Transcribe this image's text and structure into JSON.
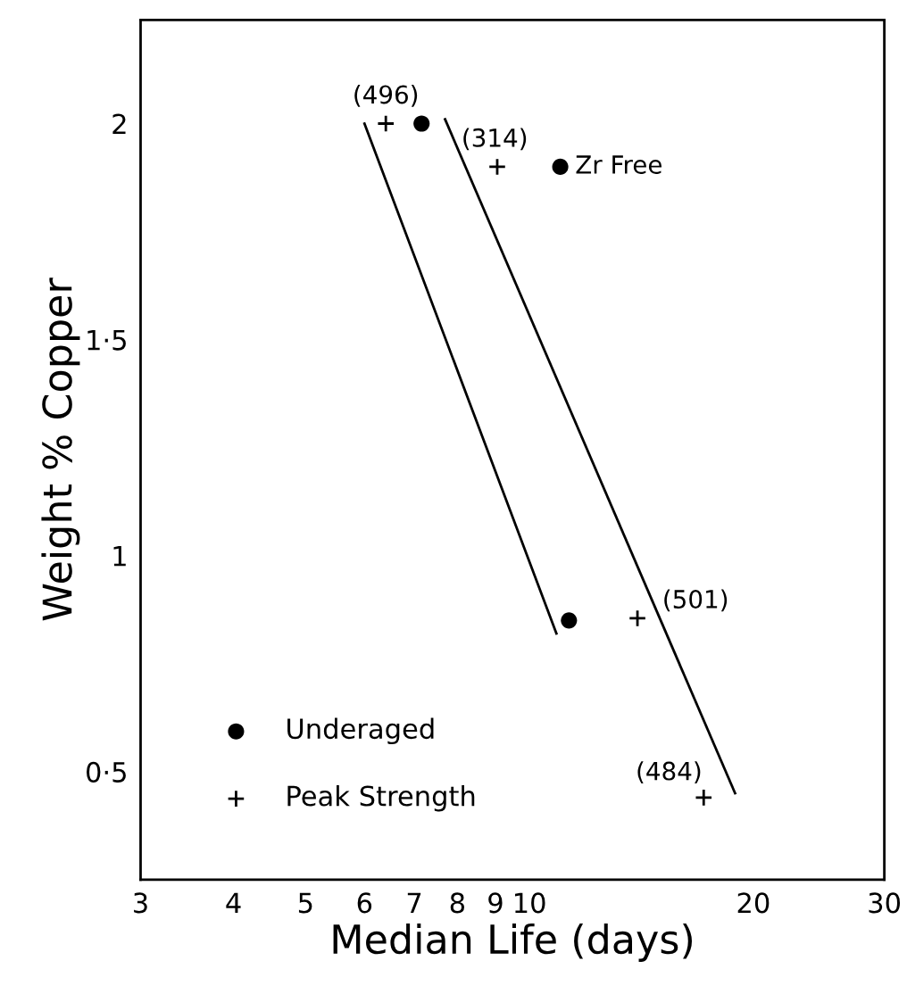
{
  "chart_data": {
    "type": "scatter",
    "xlabel": "Median Life (days)",
    "ylabel": "Weight % Copper",
    "log": "x",
    "xlim": [
      3,
      30
    ],
    "xticks": [
      3,
      4,
      5,
      6,
      7,
      8,
      9,
      10,
      20,
      30
    ],
    "ylim": [
      0.25,
      2.24
    ],
    "yticks": [
      {
        "value": 0.5,
        "label": "0·5"
      },
      {
        "value": 1,
        "label": "1"
      },
      {
        "value": 1.5,
        "label": "1·5"
      },
      {
        "value": 2,
        "label": "2"
      }
    ],
    "grid": false,
    "legend": "bottom left",
    "series": [
      {
        "name": "Underaged",
        "color": "#000000",
        "marker": "circle",
        "x": [
          7.16,
          11.0,
          11.3
        ],
        "values": [
          2.0,
          1.9,
          0.85
        ]
      },
      {
        "name": "Peak Strength",
        "color": "#000000",
        "marker": "cross",
        "x": [
          6.41,
          9.05,
          13.97,
          17.15
        ],
        "values": [
          2.0,
          1.9,
          0.855,
          0.44
        ]
      },
      {
        "type": "line",
        "color": "#000000",
        "x": [
          6.0,
          10.87
        ],
        "values": [
          2.0,
          0.82
        ]
      },
      {
        "type": "line",
        "color": "#000000",
        "x": [
          7.7,
          18.9
        ],
        "values": [
          2.01,
          0.45
        ]
      }
    ],
    "annotations": [
      {
        "text": "(496)",
        "x": 6.41,
        "y": 2.0
      },
      {
        "text": "(314)",
        "x": 9.05,
        "y": 1.9
      },
      {
        "text": "Zr Free",
        "x": 11.0,
        "y": 1.9
      },
      {
        "text": "(501)",
        "x": 13.97,
        "y": 0.855
      },
      {
        "text": "(484)",
        "x": 17.15,
        "y": 0.44
      }
    ]
  }
}
